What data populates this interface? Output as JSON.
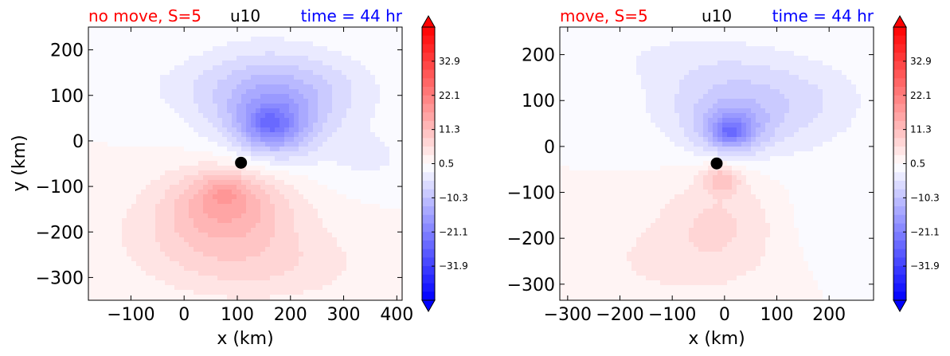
{
  "colors": {
    "title_left": "#ff0000",
    "title_center": "#000000",
    "title_right": "#0000ff",
    "negative_max": "#0000ff",
    "positive_max": "#ff0000",
    "zero": "#ffffff",
    "marker": "#000000"
  },
  "chart_data": [
    {
      "type": "contourf",
      "title_left": "no move, S=5",
      "title_center": "u10",
      "title_right": "time = 44 hr",
      "xlabel": "x (km)",
      "ylabel": "y (km)",
      "xlim": [
        -180,
        410
      ],
      "ylim": [
        -350,
        250
      ],
      "xticks": [
        -100,
        0,
        100,
        200,
        300,
        400
      ],
      "xtick_labels": [
        "−100",
        "0",
        "100",
        "200",
        "300",
        "400"
      ],
      "yticks": [
        200,
        100,
        0,
        -100,
        -200,
        -300
      ],
      "ytick_labels": [
        "200",
        "100",
        "0",
        "−100",
        "−200",
        "−300"
      ],
      "center_marker": {
        "x": 107,
        "y": -48
      },
      "colorbar": {
        "ticks": [
          32.9,
          22.1,
          11.3,
          0.5,
          -10.3,
          -21.1,
          -31.9
        ],
        "tick_labels": [
          "32.9",
          "22.1",
          "11.3",
          "0.5",
          "−10.3",
          "−21.1",
          "−31.9"
        ],
        "range": [
          -42.7,
          43.7
        ],
        "extend": "both"
      },
      "field": {
        "background": 0.5,
        "blobs": [
          {
            "x": 150,
            "y": 95,
            "sx": 130,
            "sy": 110,
            "a": -10
          },
          {
            "x": 170,
            "y": 30,
            "sx": 75,
            "sy": 70,
            "a": -12
          },
          {
            "x": 160,
            "y": 35,
            "sx": 40,
            "sy": 35,
            "a": -6
          },
          {
            "x": 270,
            "y": 110,
            "sx": 120,
            "sy": 80,
            "a": -4
          },
          {
            "x": 0,
            "y": 120,
            "sx": 150,
            "sy": 70,
            "a": -2
          },
          {
            "x": 350,
            "y": -40,
            "sx": 100,
            "sy": 70,
            "a": -3
          },
          {
            "x": 80,
            "y": -130,
            "sx": 110,
            "sy": 80,
            "a": 10
          },
          {
            "x": 60,
            "y": -200,
            "sx": 180,
            "sy": 100,
            "a": 6
          },
          {
            "x": 75,
            "y": -110,
            "sx": 40,
            "sy": 35,
            "a": 5
          },
          {
            "x": 150,
            "y": -280,
            "sx": 200,
            "sy": 80,
            "a": 4
          }
        ]
      }
    },
    {
      "type": "contourf",
      "title_left": "move, S=5",
      "title_center": "u10",
      "title_right": "time = 44 hr",
      "xlabel": "x (km)",
      "ylabel": "",
      "xlim": [
        -315,
        285
      ],
      "ylim": [
        -335,
        260
      ],
      "xticks": [
        -300,
        -200,
        -100,
        0,
        100,
        200
      ],
      "xtick_labels": [
        "−300",
        "−200",
        "−100",
        "0",
        "100",
        "200"
      ],
      "yticks": [
        200,
        100,
        0,
        -100,
        -200,
        -300
      ],
      "ytick_labels": [
        "200",
        "100",
        "0",
        "−100",
        "−200",
        "−300"
      ],
      "center_marker": {
        "x": -15,
        "y": -37
      },
      "colorbar": {
        "ticks": [
          32.9,
          22.1,
          11.3,
          0.5,
          -10.3,
          -21.1,
          -31.9
        ],
        "tick_labels": [
          "32.9",
          "22.1",
          "11.3",
          "0.5",
          "−10.3",
          "−21.1",
          "−31.9"
        ],
        "range": [
          -42.7,
          43.7
        ],
        "extend": "both"
      },
      "field": {
        "background": 0.5,
        "blobs": [
          {
            "x": 20,
            "y": 90,
            "sx": 150,
            "sy": 110,
            "a": -9
          },
          {
            "x": 15,
            "y": 35,
            "sx": 60,
            "sy": 50,
            "a": -12
          },
          {
            "x": 10,
            "y": 30,
            "sx": 25,
            "sy": 25,
            "a": -8
          },
          {
            "x": 180,
            "y": 100,
            "sx": 120,
            "sy": 90,
            "a": -3
          },
          {
            "x": -150,
            "y": 200,
            "sx": 180,
            "sy": 70,
            "a": -2
          },
          {
            "x": 200,
            "y": -150,
            "sx": 90,
            "sy": 120,
            "a": -2
          },
          {
            "x": -5,
            "y": -70,
            "sx": 35,
            "sy": 30,
            "a": 9
          },
          {
            "x": -10,
            "y": -150,
            "sx": 110,
            "sy": 110,
            "a": 5
          },
          {
            "x": -100,
            "y": -250,
            "sx": 200,
            "sy": 100,
            "a": 3
          }
        ]
      }
    }
  ]
}
